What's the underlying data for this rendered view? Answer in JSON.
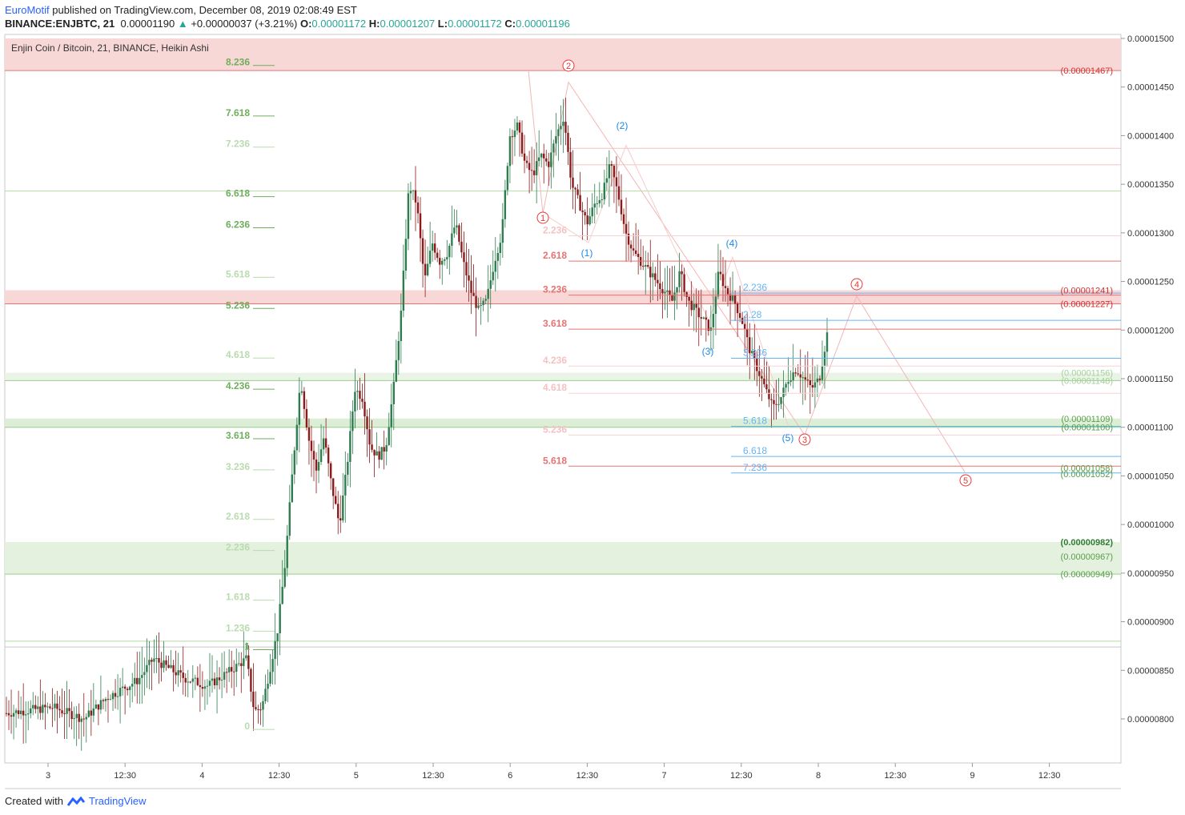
{
  "header": {
    "author": "EuroMotif",
    "published": "published on TradingView.com, December 08, 2019 02:08:49 EST",
    "symbol": "BINANCE:ENJBTC, 21",
    "price": "0.00001190",
    "change": "+0.00000037 (+3.21%)",
    "o_label": "O:",
    "o_val": "0.00001172",
    "h_label": "H:",
    "h_val": "0.00001207",
    "l_label": "L:",
    "l_val": "0.00001172",
    "c_label": "C:",
    "c_val": "0.00001196"
  },
  "footer": {
    "created": "Created with",
    "brand": "TradingView"
  },
  "chart_data": {
    "type": "candlestick",
    "title": "Enjin Coin / Bitcoin, 21, BINANCE, Heikin Ashi",
    "ylim": [
      7.6e-06,
      1.5e-05
    ],
    "y_ticks": [
      "0.00000800",
      "0.00000850",
      "0.00000900",
      "0.00000950",
      "0.00001000",
      "0.00001050",
      "0.00001100",
      "0.00001150",
      "0.00001200",
      "0.00001250",
      "0.00001300",
      "0.00001350",
      "0.00001400",
      "0.00001450",
      "0.00001500"
    ],
    "x_ticks": [
      "3",
      "12:30",
      "4",
      "12:30",
      "5",
      "12:30",
      "6",
      "12:30",
      "7",
      "12:30",
      "8",
      "12:30",
      "9",
      "12:30"
    ],
    "colors": {
      "up": "#2e7d4f",
      "down": "#8b1a1a",
      "fib_green": "#7cb46a",
      "fib_red": "#e57373",
      "wave_blue": "#1e88e5",
      "wave_red": "#e53935"
    },
    "price_path": [
      [
        0,
        8.06e-06
      ],
      [
        6,
        8.12e-06
      ],
      [
        10,
        8e-06
      ],
      [
        13,
        8.22e-06
      ],
      [
        17,
        8.4e-06
      ],
      [
        19,
        8.62e-06
      ],
      [
        23,
        8.42e-06
      ],
      [
        26,
        8.34e-06
      ],
      [
        29,
        8.5e-06
      ],
      [
        31,
        8.62e-06
      ],
      [
        32,
        8.08e-06
      ],
      [
        33,
        8.12e-06
      ],
      [
        34,
        8.5e-06
      ],
      [
        35,
        8.9e-06
      ],
      [
        36,
        9.6e-06
      ],
      [
        37,
        1.06e-05
      ],
      [
        38,
        1.15e-05
      ],
      [
        39,
        1.09e-05
      ],
      [
        40,
        1.055e-05
      ],
      [
        41,
        1.09e-05
      ],
      [
        42,
        1.04e-05
      ],
      [
        43,
        1e-05
      ],
      [
        44,
        1.06e-05
      ],
      [
        45,
        1.14e-05
      ],
      [
        46,
        1.13e-05
      ],
      [
        47,
        1.08e-05
      ],
      [
        48,
        1.07e-05
      ],
      [
        49,
        1.08e-05
      ],
      [
        50,
        1.14e-05
      ],
      [
        51,
        1.22e-05
      ],
      [
        52,
        1.35e-05
      ],
      [
        53,
        1.33e-05
      ],
      [
        54,
        1.25e-05
      ],
      [
        55,
        1.29e-05
      ],
      [
        56,
        1.27e-05
      ],
      [
        57,
        1.28e-05
      ],
      [
        58,
        1.31e-05
      ],
      [
        59,
        1.27e-05
      ],
      [
        60,
        1.24e-05
      ],
      [
        61,
        1.22e-05
      ],
      [
        62,
        1.23e-05
      ],
      [
        63,
        1.27e-05
      ],
      [
        64,
        1.3e-05
      ],
      [
        65,
        1.4e-05
      ],
      [
        66,
        1.41e-05
      ],
      [
        67,
        1.37e-05
      ],
      [
        68,
        1.36e-05
      ],
      [
        69,
        1.38e-05
      ],
      [
        70,
        1.37e-05
      ],
      [
        71,
        1.4e-05
      ],
      [
        72,
        1.42e-05
      ],
      [
        73,
        1.35e-05
      ],
      [
        74,
        1.33e-05
      ],
      [
        75,
        1.31e-05
      ],
      [
        76,
        1.33e-05
      ],
      [
        77,
        1.34e-05
      ],
      [
        78,
        1.37e-05
      ],
      [
        79,
        1.34e-05
      ],
      [
        80,
        1.3e-05
      ],
      [
        81,
        1.28e-05
      ],
      [
        82,
        1.27e-05
      ],
      [
        83,
        1.26e-05
      ],
      [
        84,
        1.25e-05
      ],
      [
        85,
        1.24e-05
      ],
      [
        86,
        1.23e-05
      ],
      [
        87,
        1.26e-05
      ],
      [
        88,
        1.23e-05
      ],
      [
        89,
        1.22e-05
      ],
      [
        90,
        1.21e-05
      ],
      [
        91,
        1.2e-05
      ],
      [
        92,
        1.26e-05
      ],
      [
        93,
        1.24e-05
      ],
      [
        94,
        1.23e-05
      ],
      [
        95,
        1.21e-05
      ],
      [
        96,
        1.18e-05
      ],
      [
        97,
        1.16e-05
      ],
      [
        98,
        1.14e-05
      ],
      [
        99,
        1.12e-05
      ],
      [
        100,
        1.13e-05
      ],
      [
        101,
        1.15e-05
      ],
      [
        102,
        1.16e-05
      ],
      [
        103,
        1.15e-05
      ],
      [
        104,
        1.14e-05
      ],
      [
        105,
        1.15e-05
      ],
      [
        106,
        1.196e-05
      ]
    ],
    "zones": [
      {
        "from": 1.467e-05,
        "to": 1.5e-05,
        "color": "#f8d7d7"
      },
      {
        "from": 1.227e-05,
        "to": 1.241e-05,
        "color": "#f8d7d7"
      },
      {
        "from": 1.148e-05,
        "to": 1.156e-05,
        "color": "#eaf4e6"
      },
      {
        "from": 1.1e-05,
        "to": 1.109e-05,
        "color": "#dcefd6"
      },
      {
        "from": 9.49e-06,
        "to": 9.82e-06,
        "color": "#e3f1de"
      }
    ],
    "left_fib": {
      "labels": [
        "8.236",
        "7.618",
        "7.236",
        "6.618",
        "6.236",
        "5.618",
        "5.236",
        "4.618",
        "4.236",
        "3.618",
        "3.236",
        "2.618",
        "2.236",
        "1.618",
        "1.236",
        "1",
        "0"
      ],
      "values": [
        1.478e-05,
        1.426e-05,
        1.394e-05,
        1.343e-05,
        1.311e-05,
        1.26e-05,
        1.228e-05,
        1.177e-05,
        1.145e-05,
        1.094e-05,
        1.062e-05,
        1.011e-05,
        9.79e-06,
        9.28e-06,
        8.96e-06,
        8.77e-06,
        7.95e-06
      ]
    },
    "mid_fib": {
      "labels": [
        "2.618",
        "3.236",
        "3.618",
        "4.236",
        "4.618",
        "5.236",
        "5.618",
        "2.236"
      ],
      "values": [
        1.271e-05,
        1.236e-05,
        1.201e-05,
        1.163e-05,
        1.135e-05,
        1.092e-05,
        1.06e-05,
        1.297e-05
      ]
    },
    "blue_fib": {
      "labels": [
        "2.236",
        "2.28",
        "3.236",
        "5.618",
        "6.618",
        "7.236"
      ],
      "values": [
        1.238e-05,
        1.21e-05,
        1.171e-05,
        1.101e-05,
        1.07e-05,
        1.053e-05
      ]
    },
    "price_labels": [
      {
        "text": "(0.00001467)",
        "value": 1.467e-05,
        "color": "#d32f2f"
      },
      {
        "text": "(0.00001241)",
        "value": 1.241e-05,
        "color": "#d32f2f"
      },
      {
        "text": "(0.00001227)",
        "value": 1.227e-05,
        "color": "#d32f2f"
      },
      {
        "text": "(0.00001156)",
        "value": 1.156e-05,
        "color": "#a5d19a"
      },
      {
        "text": "(0.00001148)",
        "value": 1.148e-05,
        "color": "#a5d19a"
      },
      {
        "text": "(0.00001109)",
        "value": 1.109e-05,
        "color": "#5a9e4b"
      },
      {
        "text": "(0.00001100)",
        "value": 1.1e-05,
        "color": "#5a9e4b"
      },
      {
        "text": "(0.00001058)",
        "value": 1.058e-05,
        "color": "#5a9e4b"
      },
      {
        "text": "(0.00001052)",
        "value": 1.052e-05,
        "color": "#5a9e4b"
      },
      {
        "text": "(0.00000982)",
        "value": 9.82e-06,
        "color": "#2e7d32"
      },
      {
        "text": "(0.00000967)",
        "value": 9.67e-06,
        "color": "#5a9e4b"
      },
      {
        "text": "(0.00000949)",
        "value": 9.49e-06,
        "color": "#5a9e4b"
      }
    ],
    "waves_blue": [
      "(1)",
      "(2)",
      "(3)",
      "(4)",
      "(5)",
      "(3)"
    ],
    "waves_red": [
      "1",
      "2",
      "3",
      "4",
      "5"
    ]
  }
}
